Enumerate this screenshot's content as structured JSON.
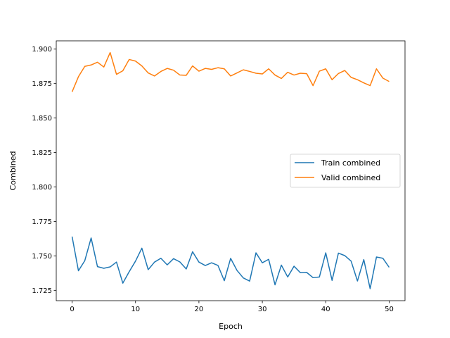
{
  "chart_data": {
    "type": "line",
    "xlabel": "Epoch",
    "ylabel": "Combined",
    "xlim": [
      -2.5,
      52.5
    ],
    "ylim": [
      1.7175,
      1.906
    ],
    "xticks": [
      0,
      10,
      20,
      30,
      40,
      50
    ],
    "yticks": [
      1.725,
      1.75,
      1.775,
      1.8,
      1.825,
      1.85,
      1.875,
      1.9
    ],
    "ytick_labels": [
      "1.725",
      "1.750",
      "1.775",
      "1.800",
      "1.825",
      "1.850",
      "1.875",
      "1.900"
    ],
    "grid": false,
    "legend_position": "center-right",
    "x": [
      0,
      1,
      2,
      3,
      4,
      5,
      6,
      7,
      8,
      9,
      10,
      11,
      12,
      13,
      14,
      15,
      16,
      17,
      18,
      19,
      20,
      21,
      22,
      23,
      24,
      25,
      26,
      27,
      28,
      29,
      30,
      31,
      32,
      33,
      34,
      35,
      36,
      37,
      38,
      39,
      40,
      41,
      42,
      43,
      44,
      45,
      46,
      47,
      48,
      49,
      50
    ],
    "series": [
      {
        "name": "Train combined",
        "color": "#1f77b4",
        "values": [
          1.764,
          1.7392,
          1.7465,
          1.763,
          1.7422,
          1.741,
          1.742,
          1.7455,
          1.7302,
          1.7385,
          1.7462,
          1.7556,
          1.74,
          1.7455,
          1.7483,
          1.7435,
          1.748,
          1.7456,
          1.7405,
          1.753,
          1.7455,
          1.743,
          1.745,
          1.7431,
          1.732,
          1.7482,
          1.7395,
          1.734,
          1.7317,
          1.7522,
          1.745,
          1.7475,
          1.729,
          1.7433,
          1.7347,
          1.7425,
          1.7378,
          1.738,
          1.7342,
          1.7347,
          1.7522,
          1.7322,
          1.752,
          1.7502,
          1.7462,
          1.7318,
          1.7473,
          1.7262,
          1.7492,
          1.7483,
          1.7417
        ]
      },
      {
        "name": "Valid combined",
        "color": "#ff7f0e",
        "values": [
          1.869,
          1.88,
          1.8875,
          1.8885,
          1.8905,
          1.887,
          1.8975,
          1.8817,
          1.8843,
          1.8925,
          1.8913,
          1.8878,
          1.8827,
          1.8805,
          1.8838,
          1.886,
          1.8847,
          1.8812,
          1.881,
          1.8878,
          1.884,
          1.886,
          1.8853,
          1.8865,
          1.8857,
          1.8805,
          1.8827,
          1.885,
          1.8838,
          1.8825,
          1.882,
          1.8857,
          1.8812,
          1.8787,
          1.8832,
          1.8812,
          1.8825,
          1.8822,
          1.8735,
          1.884,
          1.8857,
          1.8778,
          1.8823,
          1.8845,
          1.8795,
          1.8778,
          1.8755,
          1.8735,
          1.8857,
          1.879,
          1.8765
        ]
      }
    ]
  }
}
